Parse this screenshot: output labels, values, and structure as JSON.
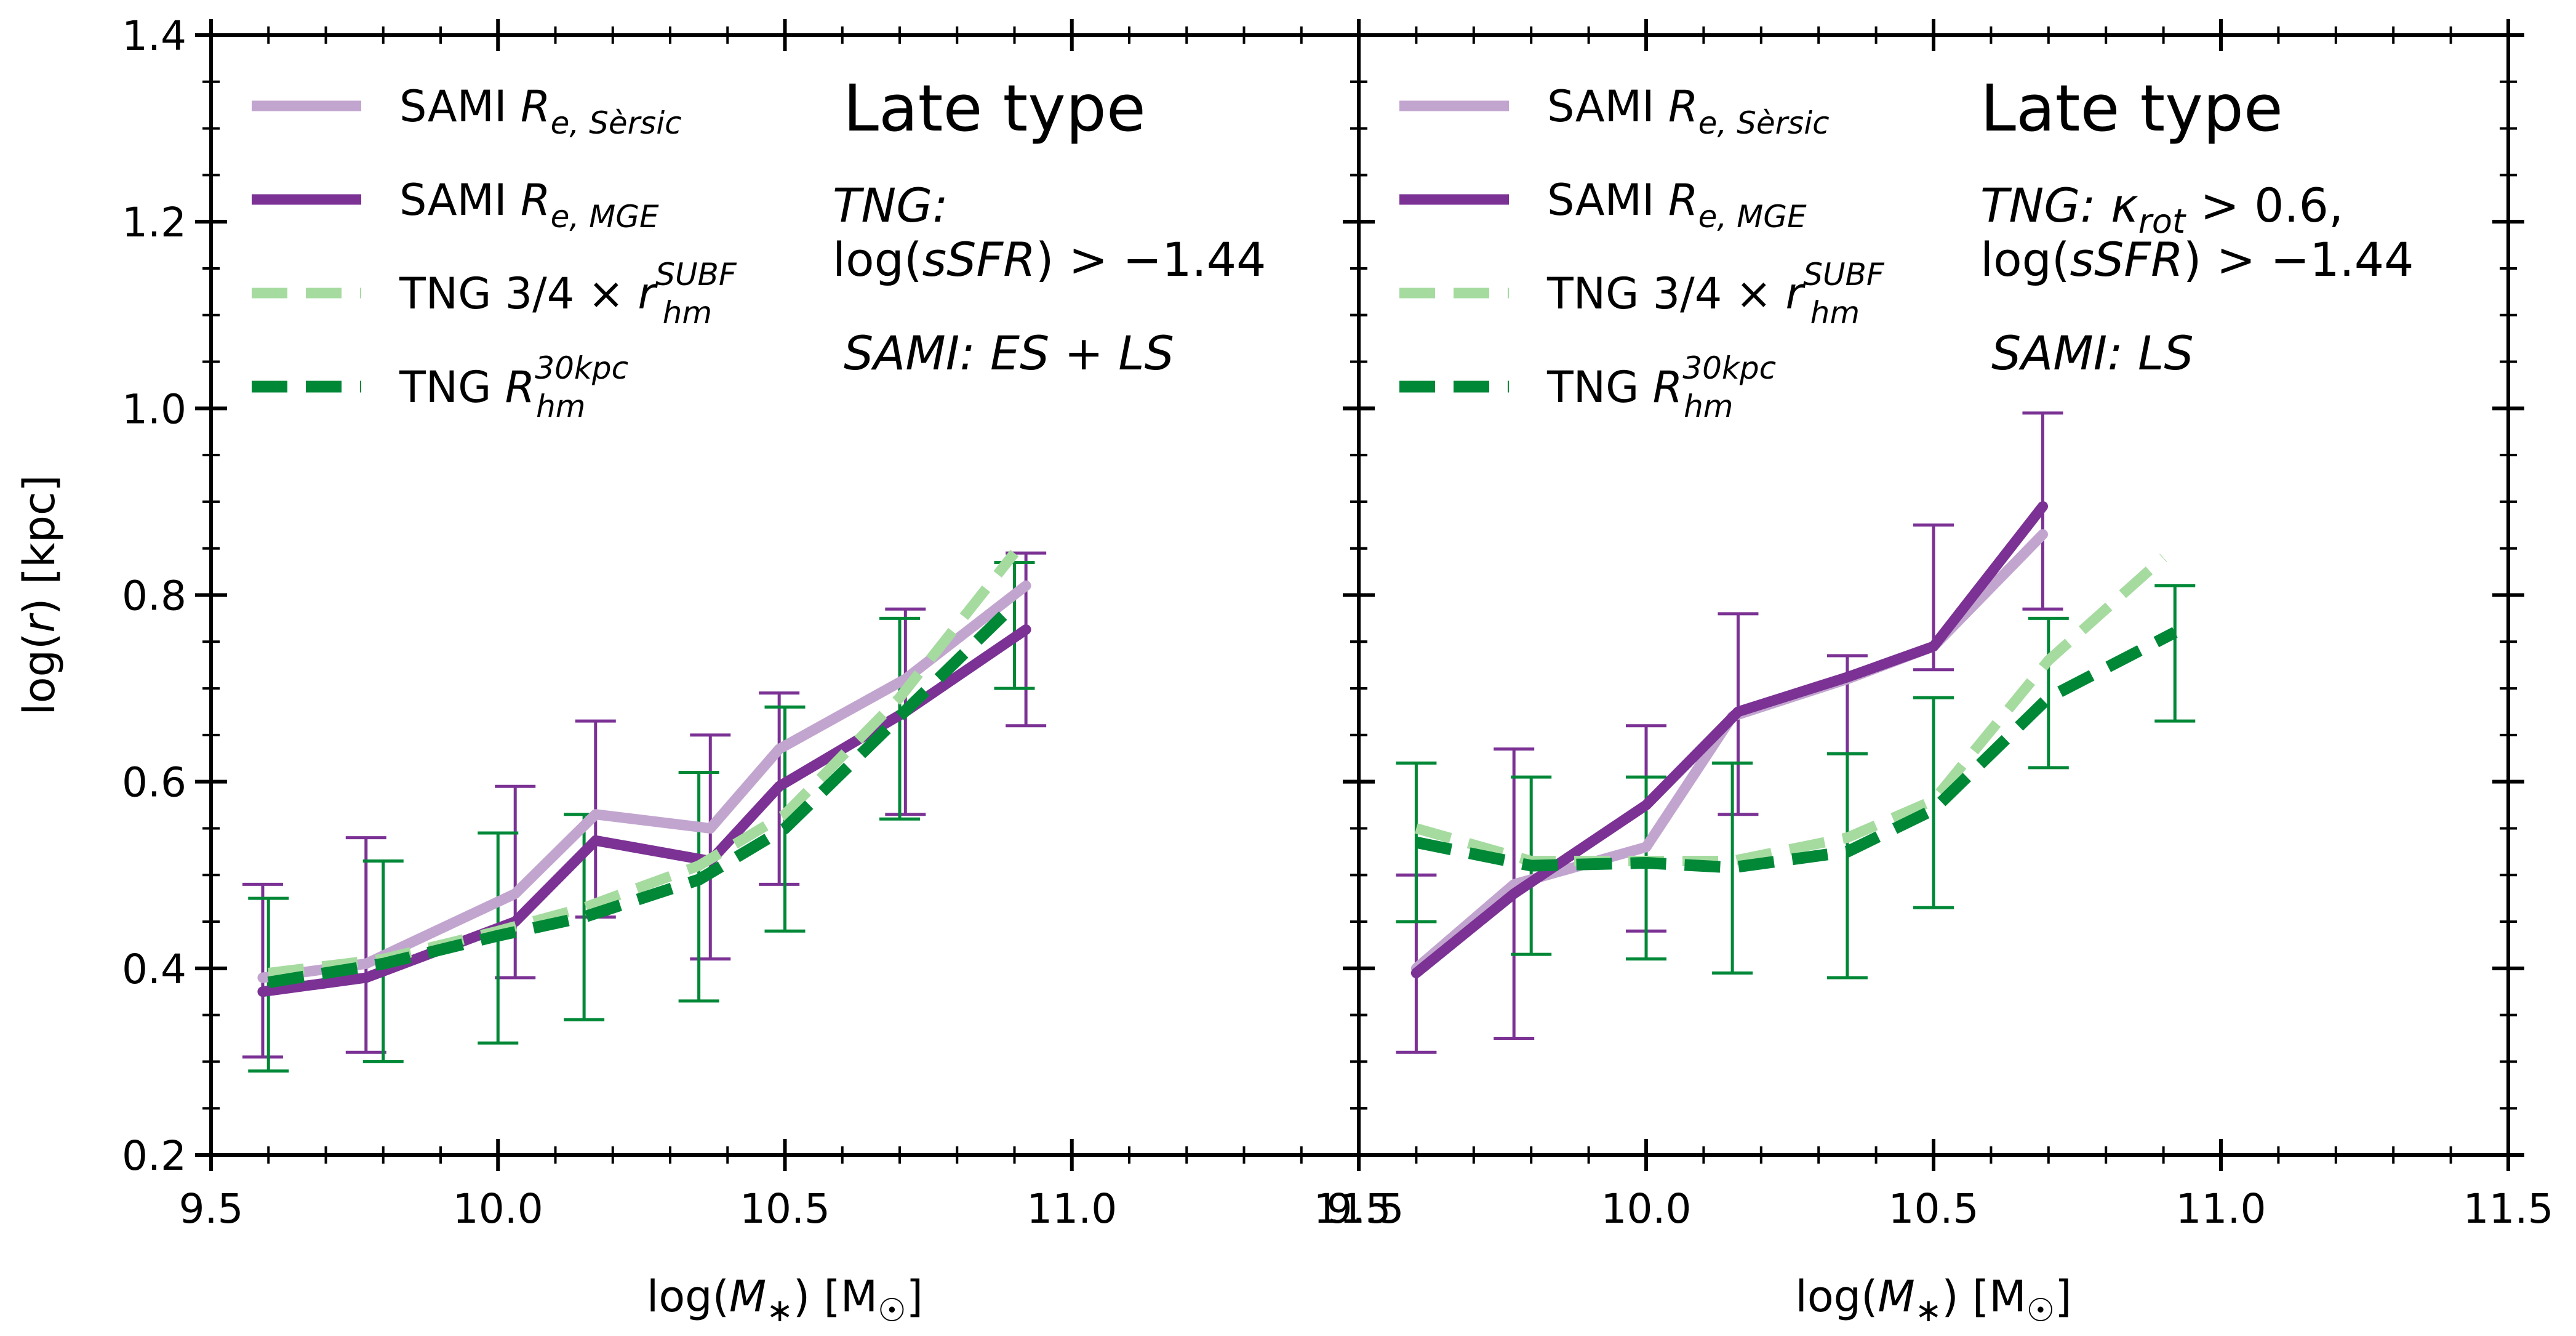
{
  "colors": {
    "sami_sersic": "#c2a5cf",
    "sami_mge": "#7b3294",
    "tng_subf": "#a6dba0",
    "tng_30kpc": "#008837"
  },
  "chart_data": [
    {
      "type": "line",
      "panel": "left",
      "title": "Late type",
      "xlabel": "log(M∗) [M☉]",
      "ylabel": "log(r) [kpc]",
      "xlim": [
        9.5,
        11.5
      ],
      "ylim": [
        0.2,
        1.4
      ],
      "xticks": [
        "9.5",
        "10.0",
        "10.5",
        "11.0",
        "11.5"
      ],
      "yticks": [
        "0.2",
        "0.4",
        "0.6",
        "0.8",
        "1.0",
        "1.2",
        "1.4"
      ],
      "legend": {
        "position": "top-left",
        "entries": [
          {
            "key": "sami_sersic",
            "base": "SAMI ",
            "sym": "R",
            "sub": "e, Sèrsic",
            "sup": ""
          },
          {
            "key": "sami_mge",
            "base": "SAMI ",
            "sym": "R",
            "sub": "e, MGE",
            "sup": ""
          },
          {
            "key": "tng_subf",
            "base": "TNG 3/4 × ",
            "sym": "r",
            "sub": "hm",
            "sup": "SUBF"
          },
          {
            "key": "tng_30kpc",
            "base": "TNG ",
            "sym": "R",
            "sub": "hm",
            "sup": "30kpc"
          }
        ]
      },
      "annotations": {
        "tng_line1": "TNG:",
        "tng_line2": "log(sSFR) > −1.44",
        "sami": "SAMI: ES + LS"
      },
      "series": [
        {
          "name": "SAMI R_e,Sèrsic",
          "key": "sami_sersic",
          "style": "solid",
          "x": [
            9.59,
            9.77,
            10.03,
            10.17,
            10.37,
            10.49,
            10.71,
            10.92
          ],
          "y": [
            0.39,
            0.405,
            0.48,
            0.565,
            0.55,
            0.635,
            0.71,
            0.81
          ]
        },
        {
          "name": "SAMI R_e,MGE",
          "key": "sami_mge",
          "style": "solid",
          "x": [
            9.59,
            9.77,
            10.03,
            10.17,
            10.37,
            10.49,
            10.71,
            10.92
          ],
          "y": [
            0.375,
            0.39,
            0.45,
            0.537,
            0.515,
            0.595,
            0.675,
            0.763
          ],
          "yerr_low": [
            0.305,
            0.31,
            0.39,
            0.455,
            0.41,
            0.49,
            0.565,
            0.66
          ],
          "yerr_high": [
            0.49,
            0.54,
            0.595,
            0.665,
            0.65,
            0.695,
            0.785,
            0.845
          ]
        },
        {
          "name": "TNG 3/4 x r_hm^SUBF",
          "key": "tng_subf",
          "style": "dashed",
          "x": [
            9.6,
            9.8,
            10.0,
            10.15,
            10.35,
            10.5,
            10.7,
            10.9
          ],
          "y": [
            0.395,
            0.41,
            0.44,
            0.465,
            0.51,
            0.565,
            0.69,
            0.845
          ]
        },
        {
          "name": "TNG R_hm^30kpc",
          "key": "tng_30kpc",
          "style": "dashed",
          "x": [
            9.6,
            9.8,
            10.0,
            10.15,
            10.35,
            10.5,
            10.7,
            10.9
          ],
          "y": [
            0.385,
            0.405,
            0.435,
            0.455,
            0.495,
            0.55,
            0.67,
            0.79
          ],
          "yerr_low": [
            0.29,
            0.3,
            0.32,
            0.345,
            0.365,
            0.44,
            0.56,
            0.7
          ],
          "yerr_high": [
            0.475,
            0.515,
            0.545,
            0.565,
            0.61,
            0.68,
            0.775,
            0.835
          ]
        }
      ]
    },
    {
      "type": "line",
      "panel": "right",
      "title": "Late type",
      "xlabel": "log(M∗) [M☉]",
      "ylabel": "",
      "xlim": [
        9.5,
        11.5
      ],
      "ylim": [
        0.2,
        1.4
      ],
      "xticks": [
        "9.5",
        "10.0",
        "10.5",
        "11.0",
        "11.5"
      ],
      "yticks": [],
      "legend": {
        "position": "top-left",
        "entries": [
          {
            "key": "sami_sersic",
            "base": "SAMI ",
            "sym": "R",
            "sub": "e, Sèrsic",
            "sup": ""
          },
          {
            "key": "sami_mge",
            "base": "SAMI ",
            "sym": "R",
            "sub": "e, MGE",
            "sup": ""
          },
          {
            "key": "tng_subf",
            "base": "TNG 3/4 × ",
            "sym": "r",
            "sub": "hm",
            "sup": "SUBF"
          },
          {
            "key": "tng_30kpc",
            "base": "TNG ",
            "sym": "R",
            "sub": "hm",
            "sup": "30kpc"
          }
        ]
      },
      "annotations": {
        "tng_line1": "TNG: κ_rot > 0.6,",
        "tng_line2": "log(sSFR) > −1.44",
        "sami": "SAMI: LS"
      },
      "series": [
        {
          "name": "SAMI R_e,Sèrsic",
          "key": "sami_sersic",
          "style": "solid",
          "x": [
            9.6,
            9.77,
            10.0,
            10.15,
            10.35,
            10.5,
            10.69
          ],
          "y": [
            0.4,
            0.49,
            0.53,
            0.67,
            0.71,
            0.745,
            0.865
          ]
        },
        {
          "name": "SAMI R_e,MGE",
          "key": "sami_mge",
          "style": "solid",
          "x": [
            9.6,
            9.77,
            10.0,
            10.16,
            10.35,
            10.5,
            10.69
          ],
          "y": [
            0.395,
            0.48,
            0.575,
            0.675,
            0.712,
            0.745,
            0.895
          ],
          "yerr_low": [
            0.31,
            0.325,
            0.44,
            0.565,
            0.63,
            0.72,
            0.785
          ],
          "yerr_high": [
            0.5,
            0.635,
            0.66,
            0.78,
            0.735,
            0.875,
            0.995
          ]
        },
        {
          "name": "TNG 3/4 x r_hm^SUBF",
          "key": "tng_subf",
          "style": "dashed",
          "x": [
            9.6,
            9.8,
            10.0,
            10.15,
            10.35,
            10.5,
            10.7,
            10.9
          ],
          "y": [
            0.55,
            0.515,
            0.515,
            0.515,
            0.54,
            0.58,
            0.73,
            0.84
          ]
        },
        {
          "name": "TNG R_hm^30kpc",
          "key": "tng_30kpc",
          "style": "dashed",
          "x": [
            9.6,
            9.8,
            10.0,
            10.15,
            10.35,
            10.5,
            10.7,
            10.92
          ],
          "y": [
            0.535,
            0.51,
            0.513,
            0.508,
            0.525,
            0.57,
            0.69,
            0.76
          ],
          "yerr_low": [
            0.45,
            0.415,
            0.41,
            0.395,
            0.39,
            0.465,
            0.615,
            0.665
          ],
          "yerr_high": [
            0.62,
            0.605,
            0.605,
            0.62,
            0.63,
            0.69,
            0.775,
            0.81
          ]
        }
      ]
    }
  ]
}
